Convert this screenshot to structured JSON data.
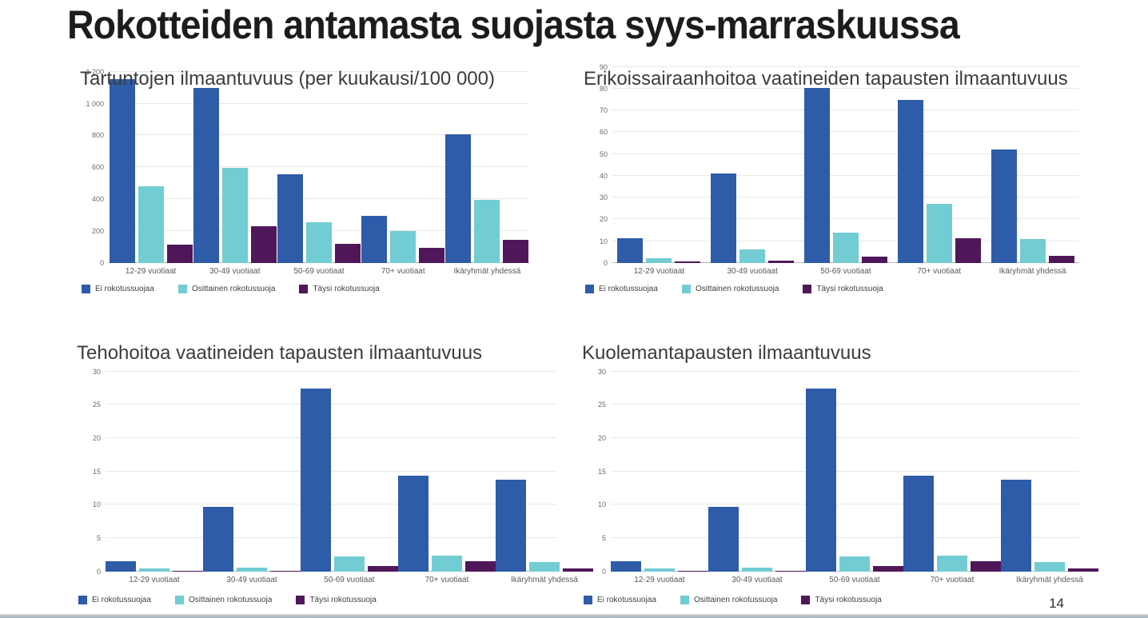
{
  "slide": {
    "title": "Rokotteiden antamasta suojasta syys-marraskuussa",
    "page_number": "14"
  },
  "colors": {
    "no_protection": "#2e5ca8",
    "partial_protection": "#72ccd4",
    "full_protection": "#4f175a"
  },
  "chart_data": [
    {
      "type": "bar",
      "title": "Tartuntojen ilmaantuvuus (per kuukausi/100 000)",
      "categories": [
        "12-29 vuotiaat",
        "30-49 vuotiaat",
        "50-69 vuotiaat",
        "70+ vuotiaat",
        "Ikäryhmät yhdessä"
      ],
      "series": [
        {
          "name": "Ei rokotussuojaa",
          "color": "#2e5ca8",
          "values": [
            1155,
            1100,
            555,
            295,
            805
          ]
        },
        {
          "name": "Osittainen rokotussuoja",
          "color": "#72ccd4",
          "values": [
            480,
            595,
            255,
            200,
            395
          ]
        },
        {
          "name": "Täysi rokotussuoja",
          "color": "#4f175a",
          "values": [
            115,
            230,
            120,
            95,
            145
          ]
        }
      ],
      "ylim": [
        0,
        1200
      ],
      "ytick_step": 200,
      "grid": true,
      "legend_position": "bottom"
    },
    {
      "type": "bar",
      "title": "Erikoissairaanhoitoa vaatineiden tapausten ilmaantuvuus",
      "categories": [
        "12-29 vuotiaat",
        "30-49 vuotiaat",
        "50-69 vuotiaat",
        "70+ vuotiaat",
        "Ikäryhmät yhdessä"
      ],
      "series": [
        {
          "name": "Ei rokotussuojaa",
          "color": "#2e5ca8",
          "values": [
            11.5,
            41,
            80.5,
            75,
            52
          ]
        },
        {
          "name": "Osittainen rokotussuoja",
          "color": "#72ccd4",
          "values": [
            2,
            6,
            14,
            27,
            11
          ]
        },
        {
          "name": "Täysi rokotussuoja",
          "color": "#4f175a",
          "values": [
            0.8,
            1,
            3,
            11.3,
            3.3
          ]
        }
      ],
      "ylim": [
        0,
        90
      ],
      "ytick_step": 10,
      "grid": true,
      "legend_position": "bottom"
    },
    {
      "type": "bar",
      "title": "Tehohoitoa vaatineiden tapausten ilmaantuvuus",
      "categories": [
        "12-29 vuotiaat",
        "30-49 vuotiaat",
        "50-69 vuotiaat",
        "70+ vuotiaat",
        "Ikäryhmät yhdessä"
      ],
      "series": [
        {
          "name": "Ei rokotussuojaa",
          "color": "#2e5ca8",
          "values": [
            1.5,
            9.7,
            27.4,
            14.4,
            13.8
          ]
        },
        {
          "name": "Osittainen rokotussuoja",
          "color": "#72ccd4",
          "values": [
            0.5,
            0.6,
            2.3,
            2.4,
            1.4
          ]
        },
        {
          "name": "Täysi rokotussuoja",
          "color": "#4f175a",
          "values": [
            0.05,
            0.1,
            0.8,
            1.5,
            0.5
          ]
        }
      ],
      "ylim": [
        0,
        30
      ],
      "ytick_step": 5,
      "grid": true,
      "legend_position": "bottom"
    },
    {
      "type": "bar",
      "title": "Kuolemantapausten ilmaantuvuus",
      "categories": [
        "12-29 vuotiaat",
        "30-49 vuotiaat",
        "50-69 vuotiaat",
        "70+ vuotiaat",
        "Ikäryhmät yhdessä"
      ],
      "series": [
        {
          "name": "Ei rokotussuojaa",
          "color": "#2e5ca8",
          "values": [
            1.5,
            9.7,
            27.4,
            14.4,
            13.8
          ]
        },
        {
          "name": "Osittainen rokotussuoja",
          "color": "#72ccd4",
          "values": [
            0.5,
            0.6,
            2.3,
            2.4,
            1.4
          ]
        },
        {
          "name": "Täysi rokotussuoja",
          "color": "#4f175a",
          "values": [
            0.05,
            0.1,
            0.8,
            1.5,
            0.5
          ]
        }
      ],
      "ylim": [
        0,
        30
      ],
      "ytick_step": 5,
      "grid": true,
      "legend_position": "bottom"
    }
  ]
}
